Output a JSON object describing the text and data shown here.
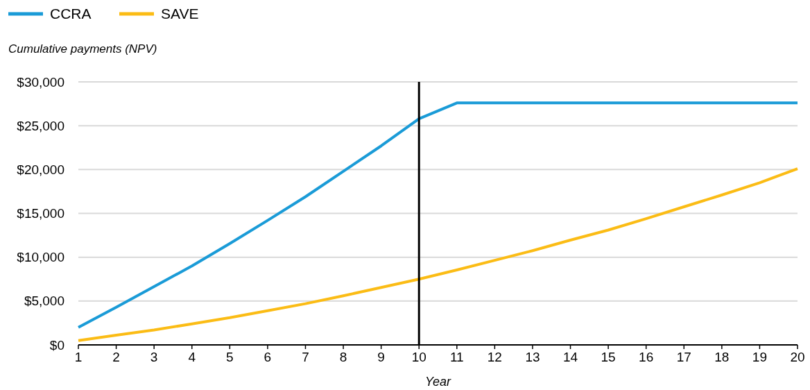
{
  "chart_data": {
    "type": "line",
    "ylabel": "Cumulative payments (NPV)",
    "xlabel": "Year",
    "x": [
      1,
      2,
      3,
      4,
      5,
      6,
      7,
      8,
      9,
      10,
      11,
      12,
      13,
      14,
      15,
      16,
      17,
      18,
      19,
      20
    ],
    "series": [
      {
        "name": "CCRA",
        "color": "#1a9bd7",
        "values": [
          2000,
          4300,
          6650,
          9000,
          11550,
          14200,
          16900,
          19800,
          22700,
          25800,
          27600,
          27600,
          27600,
          27600,
          27600,
          27600,
          27600,
          27600,
          27600,
          27600
        ]
      },
      {
        "name": "SAVE",
        "color": "#fbbc15",
        "values": [
          500,
          1100,
          1700,
          2400,
          3100,
          3900,
          4700,
          5600,
          6550,
          7500,
          8550,
          9650,
          10750,
          11950,
          13100,
          14400,
          15750,
          17100,
          18500,
          20100
        ]
      }
    ],
    "xlim": [
      1,
      20
    ],
    "xticks": [
      1,
      2,
      3,
      4,
      5,
      6,
      7,
      8,
      9,
      10,
      11,
      12,
      13,
      14,
      15,
      16,
      17,
      18,
      19,
      20
    ],
    "ylim": [
      0,
      30000
    ],
    "yticks": [
      {
        "value": 0,
        "label": "$0"
      },
      {
        "value": 5000,
        "label": "$5,000"
      },
      {
        "value": 10000,
        "label": "$10,000"
      },
      {
        "value": 15000,
        "label": "$15,000"
      },
      {
        "value": 20000,
        "label": "$20,000"
      },
      {
        "value": 25000,
        "label": "$25,000"
      },
      {
        "value": 30000,
        "label": "$30,000"
      }
    ],
    "ref_lines": [
      {
        "axis": "x",
        "value": 10,
        "color": "#000000"
      }
    ],
    "grid": "y",
    "legend": "top left",
    "marker": "none",
    "line_style": "solid"
  }
}
